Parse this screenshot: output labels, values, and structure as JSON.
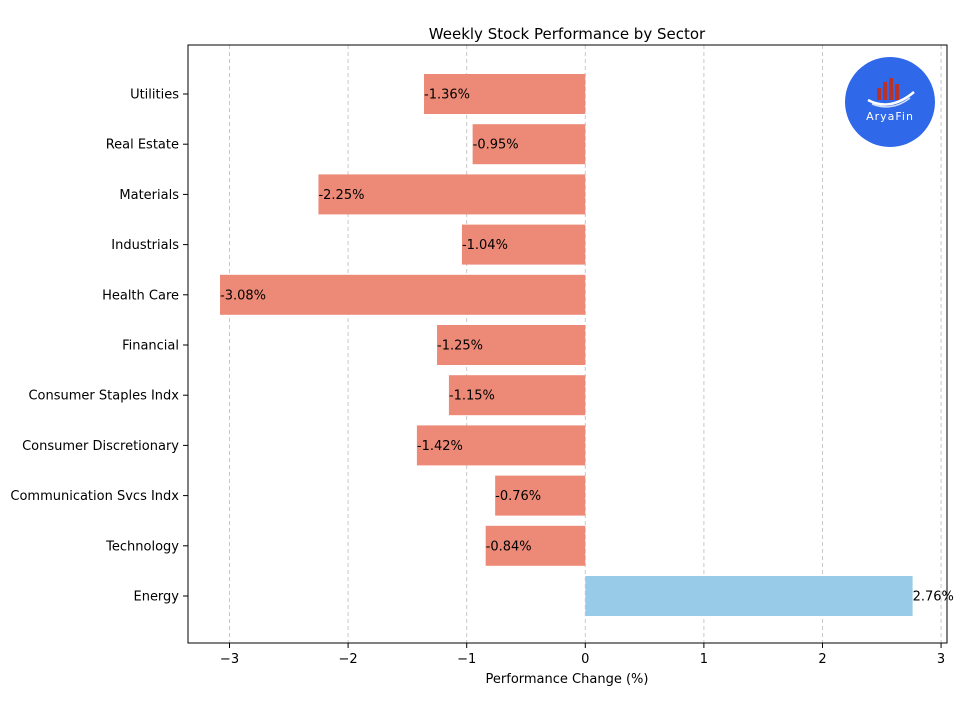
{
  "chart_data": {
    "type": "bar",
    "orientation": "horizontal",
    "title": "Weekly Stock Performance by Sector",
    "xlabel": "Performance Change (%)",
    "ylabel": "",
    "xlim": [
      -3.35,
      3.05
    ],
    "xticks": [
      -3,
      -2,
      -1,
      0,
      1,
      2,
      3
    ],
    "xtick_labels": [
      "−3",
      "−2",
      "−1",
      "0",
      "1",
      "2",
      "3"
    ],
    "grid": "x dashed",
    "categories": [
      "Utilities",
      "Real Estate",
      "Materials",
      "Industrials",
      "Health Care",
      "Financial",
      "Consumer Staples Indx",
      "Consumer Discretionary",
      "Communication Svcs Indx",
      "Technology",
      "Energy"
    ],
    "values": [
      -1.36,
      -0.95,
      -2.25,
      -1.04,
      -3.08,
      -1.25,
      -1.15,
      -1.42,
      -0.76,
      -0.84,
      2.76
    ],
    "value_labels": [
      "-1.36%",
      "-0.95%",
      "-2.25%",
      "-1.04%",
      "-3.08%",
      "-1.25%",
      "-1.15%",
      "-1.42%",
      "-0.76%",
      "-0.84%",
      "2.76%"
    ],
    "colors": {
      "negative": "#ec8a77",
      "positive": "#98cbe8"
    }
  },
  "logo": {
    "text": "AryaFin",
    "color": "#2f68e8",
    "bar_color": "#b8322a"
  }
}
